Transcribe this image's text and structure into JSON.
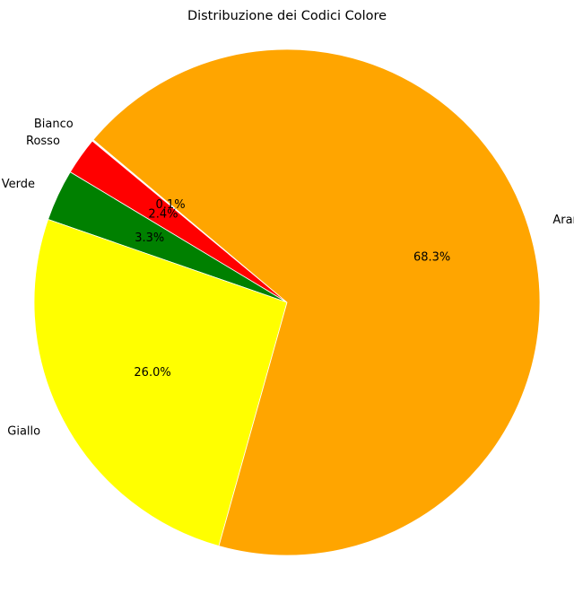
{
  "chart_data": {
    "type": "pie",
    "title": "Distribuzione dei Codici Colore",
    "start_angle_deg": 140,
    "direction": "counterclockwise",
    "slices": [
      {
        "label": "Bianco",
        "value": 0.1,
        "pct_label": "0.1%",
        "color": "#ffffff"
      },
      {
        "label": "Rosso",
        "value": 2.4,
        "pct_label": "2.4%",
        "color": "#ff0000"
      },
      {
        "label": "Verde",
        "value": 3.3,
        "pct_label": "3.3%",
        "color": "#008000"
      },
      {
        "label": "Giallo",
        "value": 26.0,
        "pct_label": "26.0%",
        "color": "#ffff00"
      },
      {
        "label": "Arancione",
        "value": 68.3,
        "pct_label": "68.3%",
        "color": "#ffa500"
      }
    ]
  }
}
